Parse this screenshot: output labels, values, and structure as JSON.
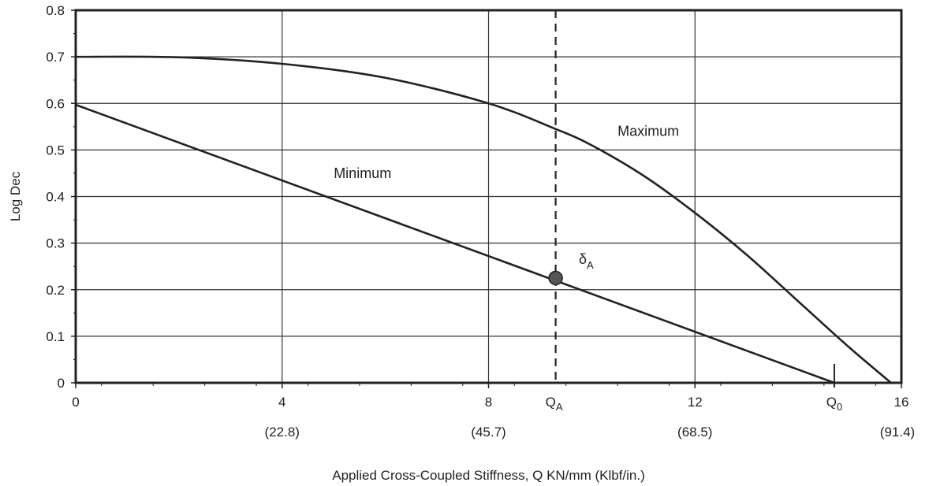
{
  "chart_data": {
    "type": "line",
    "title": "",
    "xlabel": "Applied Cross-Coupled Stiffness, Q KN/mm (Klbf/in.)",
    "ylabel": "Log Dec",
    "xlim": [
      0,
      16
    ],
    "ylim": [
      0,
      0.8
    ],
    "grid": true,
    "x_ticks": [
      {
        "value": 0,
        "label": "0",
        "secondary": ""
      },
      {
        "value": 4,
        "label": "4",
        "secondary": "(22.8)"
      },
      {
        "value": 8,
        "label": "8",
        "secondary": "(45.7)"
      },
      {
        "value": 12,
        "label": "12",
        "secondary": "(68.5)"
      },
      {
        "value": 16,
        "label": "16",
        "secondary": "(91.4)"
      }
    ],
    "y_ticks": [
      {
        "value": 0,
        "label": "0"
      },
      {
        "value": 0.1,
        "label": "0.1"
      },
      {
        "value": 0.2,
        "label": "0.2"
      },
      {
        "value": 0.3,
        "label": "0.3"
      },
      {
        "value": 0.4,
        "label": "0.4"
      },
      {
        "value": 0.5,
        "label": "0.5"
      },
      {
        "value": 0.6,
        "label": "0.6"
      },
      {
        "value": 0.7,
        "label": "0.7"
      },
      {
        "value": 0.8,
        "label": "0.8"
      }
    ],
    "series": [
      {
        "name": "Maximum",
        "x": [
          0,
          2,
          4,
          6,
          8,
          9.3,
          10,
          11,
          12,
          13,
          14,
          15,
          15.8
        ],
        "y": [
          0.7,
          0.699,
          0.685,
          0.655,
          0.6,
          0.545,
          0.51,
          0.445,
          0.365,
          0.275,
          0.175,
          0.075,
          0.0
        ]
      },
      {
        "name": "Minimum",
        "x": [
          0,
          14.7
        ],
        "y": [
          0.597,
          0.0
        ]
      }
    ],
    "annotations": {
      "maximum_label": {
        "text": "Maximum",
        "x": 10.5,
        "y": 0.53
      },
      "minimum_label": {
        "text": "Minimum",
        "x": 5.0,
        "y": 0.44
      },
      "marker_point": {
        "x": 9.3,
        "y": 0.225
      },
      "delta_label": {
        "main": "δ",
        "sub": "A",
        "x": 9.75,
        "y": 0.255
      },
      "qa_line": {
        "x": 9.3,
        "label_main": "Q",
        "label_sub": "A"
      },
      "q0_mark": {
        "x": 14.7,
        "label_main": "Q",
        "label_sub": "0"
      }
    }
  }
}
